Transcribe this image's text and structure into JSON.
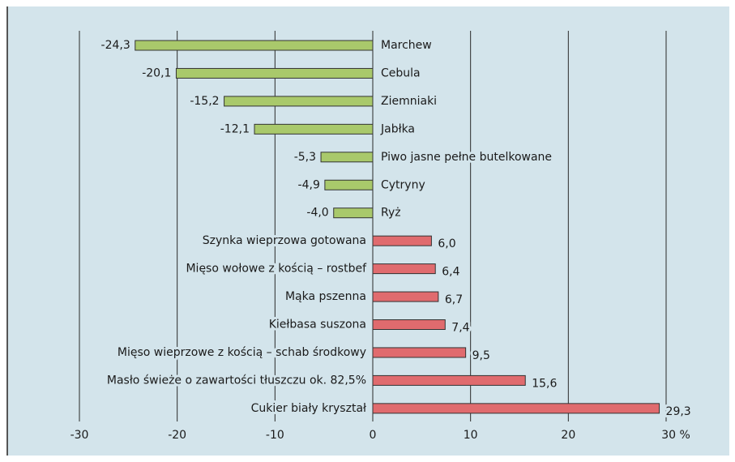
{
  "chart_data": {
    "type": "bar",
    "orientation": "horizontal",
    "categories": [
      "Marchew",
      "Cebula",
      "Ziemniaki",
      "Jabłka",
      "Piwo jasne pełne butelkowane",
      "Cytryny",
      "Ryż",
      "Szynka wieprzowa gotowana",
      "Mięso wołowe z kością – rostbef",
      "Mąka pszenna",
      "Kiełbasa suszona",
      "Mięso wieprzowe z kością – schab środkowy",
      "Masło świeże o zawartości tłuszczu ok. 82,5%",
      "Cukier biały kryształ"
    ],
    "values": [
      -24.3,
      -20.1,
      -15.2,
      -12.1,
      -5.3,
      -4.9,
      -4.0,
      6.0,
      6.4,
      6.7,
      7.4,
      9.5,
      15.6,
      29.3
    ],
    "value_labels": [
      "-24,3",
      "-20,1",
      "-15,2",
      "-12,1",
      "-5,3",
      "-4,9",
      "-4,0",
      "6,0",
      "6,4",
      "6,7",
      "7,4",
      "9,5",
      "15,6",
      "29,3"
    ],
    "color_negative": "#a9c96b",
    "color_positive": "#e06b6e",
    "xlim": [
      -30,
      30
    ],
    "xticks": [
      -30,
      -20,
      -10,
      0,
      10,
      20,
      {
        "value": 30,
        "label": "30 %"
      }
    ],
    "grid": true
  }
}
